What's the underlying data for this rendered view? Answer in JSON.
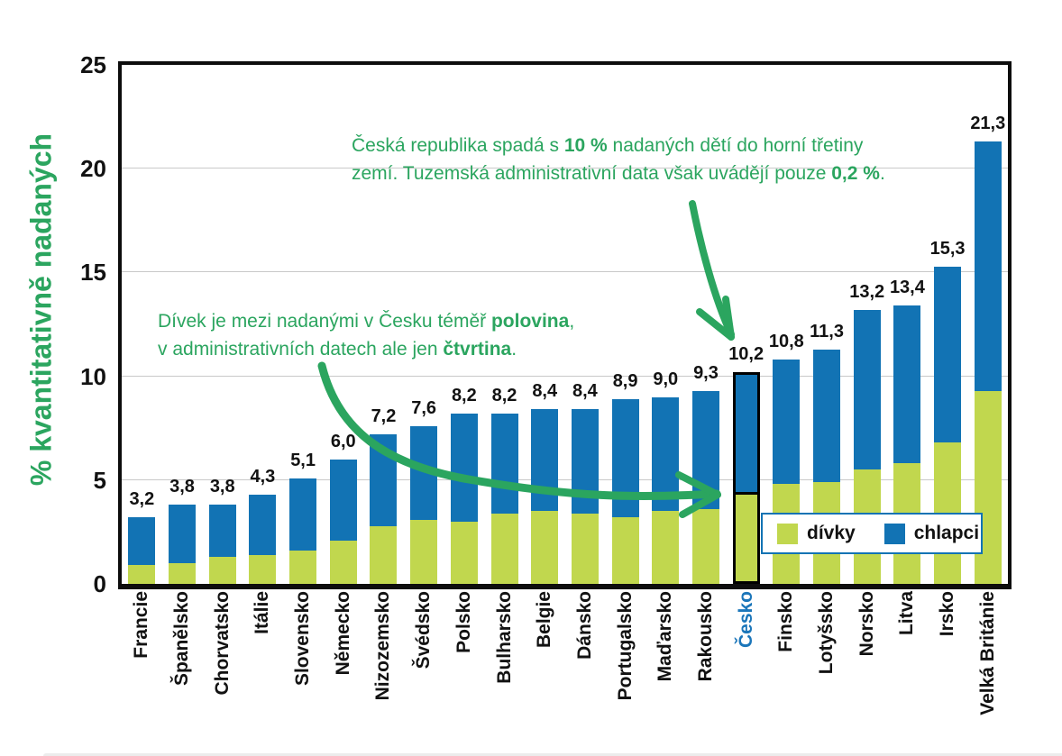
{
  "colors": {
    "girls_bar": "#c1d74e",
    "boys_bar": "#1273b4",
    "annotation_green": "#2ba55f",
    "axis_black": "#0d0d0d",
    "gridline_gray": "#c9c9c9",
    "czech_label_blue": "#1b76ba",
    "highlight_outline": "#000000",
    "label_black": "#121212"
  },
  "chart_data": {
    "type": "bar",
    "stacked": true,
    "ylabel": "% kvantitativně nadaných",
    "xlabel": "",
    "ylim": [
      0,
      25
    ],
    "yticks": [
      0,
      5,
      10,
      15,
      20,
      25
    ],
    "ytick_labels": [
      "0",
      "5",
      "10",
      "15",
      "20",
      "25"
    ],
    "grid": "horizontal",
    "legend_position": "inside-lower-right",
    "categories": [
      "Francie",
      "Španělsko",
      "Chorvatsko",
      "Itálie",
      "Slovensko",
      "Německo",
      "Nizozemsko",
      "Švédsko",
      "Polsko",
      "Bulharsko",
      "Belgie",
      "Dánsko",
      "Portugalsko",
      "Maďarsko",
      "Rakousko",
      "Česko",
      "Finsko",
      "Lotyšsko",
      "Norsko",
      "Litva",
      "Irsko",
      "Velká Británie"
    ],
    "totals": [
      3.2,
      3.8,
      3.8,
      4.3,
      5.1,
      6.0,
      7.2,
      7.6,
      8.2,
      8.2,
      8.4,
      8.4,
      8.9,
      9.0,
      9.3,
      10.2,
      10.8,
      11.3,
      13.2,
      13.4,
      15.3,
      21.3
    ],
    "total_labels": [
      "3,2",
      "3,8",
      "3,8",
      "4,3",
      "5,1",
      "6,0",
      "7,2",
      "7,6",
      "8,2",
      "8,2",
      "8,4",
      "8,4",
      "8,9",
      "9,0",
      "9,3",
      "10,2",
      "10,8",
      "11,3",
      "13,2",
      "13,4",
      "15,3",
      "21,3"
    ],
    "series": [
      {
        "name": "dívky",
        "color": "#c1d74e",
        "values": [
          0.9,
          1.0,
          1.3,
          1.4,
          1.6,
          2.1,
          2.8,
          3.1,
          3.0,
          3.4,
          3.5,
          3.4,
          3.2,
          3.5,
          3.6,
          4.3,
          4.8,
          4.9,
          5.5,
          5.8,
          6.8,
          9.3
        ]
      },
      {
        "name": "chlapci",
        "color": "#1273b4",
        "values": [
          2.3,
          2.8,
          2.5,
          2.9,
          3.5,
          3.9,
          4.4,
          4.5,
          5.2,
          4.8,
          4.9,
          5.0,
          5.7,
          5.5,
          5.7,
          5.9,
          6.0,
          6.4,
          7.7,
          7.6,
          8.5,
          12.0
        ]
      }
    ],
    "highlight_category": "Česko"
  },
  "legend": {
    "items": [
      {
        "label": "dívky",
        "color": "#c1d74e"
      },
      {
        "label": "chlapci",
        "color": "#1273b4"
      }
    ]
  },
  "annotations": {
    "top": {
      "lines": [
        [
          {
            "t": "Česká republika spadá s "
          },
          {
            "t": "10 %",
            "b": true
          },
          {
            "t": " nadaných dětí do horní třetiny"
          }
        ],
        [
          {
            "t": "zemí. Tuzemská administrativní data však uvádějí pouze "
          },
          {
            "t": "0,2 %",
            "b": true
          },
          {
            "t": "."
          }
        ]
      ]
    },
    "left": {
      "lines": [
        [
          {
            "t": "Dívek je mezi nadanými v Česku téměř "
          },
          {
            "t": "polovina",
            "b": true
          },
          {
            "t": ","
          }
        ],
        [
          {
            "t": "v administrativních datech ale jen "
          },
          {
            "t": "čtvrtina",
            "b": true
          },
          {
            "t": "."
          }
        ]
      ]
    }
  }
}
